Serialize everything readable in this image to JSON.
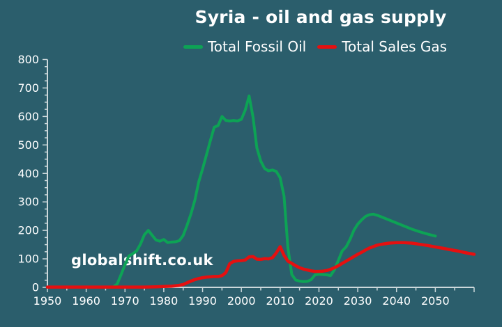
{
  "chart_data": {
    "type": "line",
    "title": "Syria - oil and gas supply",
    "watermark": "globalshift.co.uk",
    "grid": false,
    "legend_position": "top-center",
    "colors": {
      "background": "#2b5e6c",
      "axis": "#ccd8db",
      "text": "#ffffff"
    },
    "x_axis": {
      "min": 1950,
      "max": 2060,
      "major_tick_step": 10,
      "minor_tick_step": 5,
      "tick_labels": [
        1950,
        1960,
        1970,
        1980,
        1990,
        2000,
        2010,
        2020,
        2030,
        2040,
        2050
      ]
    },
    "y_axis": {
      "min": 0,
      "max": 800,
      "major_tick_step": 100,
      "minor_tick_step": 25,
      "tick_labels": [
        0,
        100,
        200,
        300,
        400,
        500,
        600,
        700,
        800
      ]
    },
    "series": [
      {
        "name": "Total Fossil Oil",
        "color": "#0da355",
        "stroke_width": 4,
        "points": [
          [
            1965,
            0
          ],
          [
            1966,
            0
          ],
          [
            1967,
            2
          ],
          [
            1968,
            12
          ],
          [
            1969,
            45
          ],
          [
            1970,
            80
          ],
          [
            1971,
            110
          ],
          [
            1972,
            118
          ],
          [
            1973,
            128
          ],
          [
            1974,
            152
          ],
          [
            1975,
            185
          ],
          [
            1976,
            200
          ],
          [
            1977,
            183
          ],
          [
            1978,
            166
          ],
          [
            1979,
            162
          ],
          [
            1980,
            168
          ],
          [
            1981,
            157
          ],
          [
            1982,
            159
          ],
          [
            1983,
            160
          ],
          [
            1984,
            164
          ],
          [
            1985,
            182
          ],
          [
            1986,
            218
          ],
          [
            1987,
            258
          ],
          [
            1988,
            305
          ],
          [
            1989,
            370
          ],
          [
            1990,
            415
          ],
          [
            1991,
            465
          ],
          [
            1992,
            515
          ],
          [
            1993,
            562
          ],
          [
            1994,
            568
          ],
          [
            1995,
            600
          ],
          [
            1996,
            586
          ],
          [
            1997,
            584
          ],
          [
            1998,
            586
          ],
          [
            1999,
            584
          ],
          [
            2000,
            590
          ],
          [
            2001,
            622
          ],
          [
            2002,
            672
          ],
          [
            2003,
            598
          ],
          [
            2004,
            490
          ],
          [
            2005,
            443
          ],
          [
            2006,
            417
          ],
          [
            2007,
            409
          ],
          [
            2008,
            412
          ],
          [
            2009,
            407
          ],
          [
            2010,
            385
          ],
          [
            2011,
            320
          ],
          [
            2012,
            140
          ],
          [
            2013,
            45
          ],
          [
            2014,
            26
          ],
          [
            2015,
            22
          ],
          [
            2016,
            20
          ],
          [
            2017,
            21
          ],
          [
            2018,
            27
          ],
          [
            2019,
            44
          ],
          [
            2020,
            46
          ],
          [
            2021,
            45
          ],
          [
            2022,
            44
          ],
          [
            2023,
            41
          ],
          [
            2024,
            62
          ],
          [
            2025,
            95
          ],
          [
            2026,
            128
          ],
          [
            2027,
            142
          ],
          [
            2028,
            168
          ],
          [
            2029,
            200
          ],
          [
            2030,
            222
          ],
          [
            2031,
            237
          ],
          [
            2032,
            249
          ],
          [
            2033,
            255
          ],
          [
            2034,
            257
          ],
          [
            2035,
            253
          ],
          [
            2036,
            248
          ],
          [
            2038,
            237
          ],
          [
            2040,
            226
          ],
          [
            2042,
            215
          ],
          [
            2044,
            204
          ],
          [
            2046,
            195
          ],
          [
            2048,
            187
          ],
          [
            2050,
            180
          ]
        ]
      },
      {
        "name": "Total Sales Gas",
        "color": "#e51010",
        "stroke_width": 4.5,
        "points": [
          [
            1950,
            1
          ],
          [
            1955,
            1
          ],
          [
            1960,
            1
          ],
          [
            1965,
            1
          ],
          [
            1970,
            1
          ],
          [
            1975,
            1
          ],
          [
            1978,
            2
          ],
          [
            1980,
            3
          ],
          [
            1982,
            4
          ],
          [
            1984,
            7
          ],
          [
            1985,
            10
          ],
          [
            1986,
            16
          ],
          [
            1987,
            22
          ],
          [
            1988,
            27
          ],
          [
            1989,
            31
          ],
          [
            1990,
            34
          ],
          [
            1991,
            36
          ],
          [
            1992,
            37
          ],
          [
            1993,
            38
          ],
          [
            1994,
            38
          ],
          [
            1995,
            41
          ],
          [
            1996,
            52
          ],
          [
            1997,
            83
          ],
          [
            1998,
            91
          ],
          [
            1999,
            93
          ],
          [
            2000,
            94
          ],
          [
            2001,
            96
          ],
          [
            2002,
            107
          ],
          [
            2003,
            108
          ],
          [
            2004,
            99
          ],
          [
            2005,
            98
          ],
          [
            2006,
            101
          ],
          [
            2007,
            100
          ],
          [
            2008,
            104
          ],
          [
            2009,
            121
          ],
          [
            2010,
            143
          ],
          [
            2011,
            112
          ],
          [
            2012,
            92
          ],
          [
            2013,
            84
          ],
          [
            2014,
            76
          ],
          [
            2015,
            69
          ],
          [
            2016,
            64
          ],
          [
            2017,
            61
          ],
          [
            2018,
            58
          ],
          [
            2019,
            56
          ],
          [
            2020,
            56
          ],
          [
            2021,
            57
          ],
          [
            2022,
            59
          ],
          [
            2023,
            63
          ],
          [
            2024,
            69
          ],
          [
            2025,
            76
          ],
          [
            2026,
            84
          ],
          [
            2027,
            92
          ],
          [
            2028,
            100
          ],
          [
            2029,
            108
          ],
          [
            2030,
            116
          ],
          [
            2031,
            123
          ],
          [
            2032,
            131
          ],
          [
            2033,
            138
          ],
          [
            2034,
            143
          ],
          [
            2035,
            148
          ],
          [
            2036,
            151
          ],
          [
            2037,
            153
          ],
          [
            2038,
            155
          ],
          [
            2040,
            157
          ],
          [
            2042,
            157
          ],
          [
            2044,
            155
          ],
          [
            2046,
            151
          ],
          [
            2048,
            147
          ],
          [
            2050,
            142
          ],
          [
            2052,
            137
          ],
          [
            2054,
            132
          ],
          [
            2056,
            127
          ],
          [
            2058,
            121
          ],
          [
            2060,
            116
          ]
        ]
      }
    ]
  }
}
